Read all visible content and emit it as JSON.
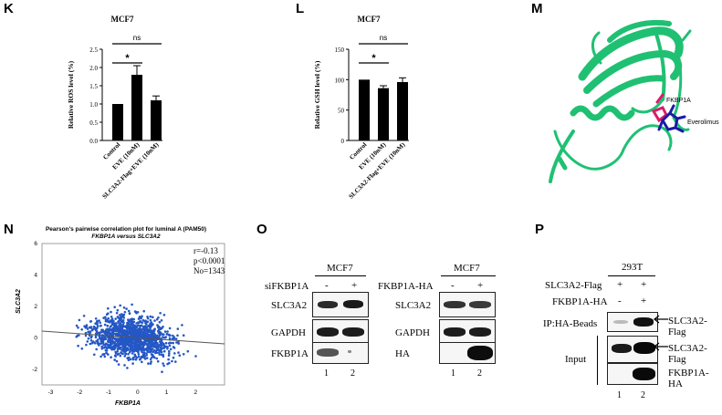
{
  "panels": {
    "K": "K",
    "L": "L",
    "M": "M",
    "N": "N",
    "O": "O",
    "P": "P"
  },
  "chart_data": [
    {
      "type": "bar",
      "panel": "K",
      "title": "MCF7",
      "ylabel": "Relative ROS level (%)",
      "categories": [
        "Control",
        "EVE (10nM)",
        "SLC3A2-Flag+EVE (10nM)"
      ],
      "values": [
        1.0,
        1.8,
        1.1
      ],
      "errors": [
        0.0,
        0.25,
        0.12
      ],
      "ylim": [
        0,
        2.5
      ],
      "yticks": [
        "0.0",
        "0.5",
        "1.0",
        "1.5",
        "2.0",
        "2.5"
      ],
      "significance": [
        {
          "label": "*",
          "from": 0,
          "to": 1
        },
        {
          "label": "ns",
          "from": 0,
          "to": 2
        }
      ]
    },
    {
      "type": "bar",
      "panel": "L",
      "title": "MCF7",
      "ylabel": "Relative GSH level (%)",
      "categories": [
        "Control",
        "EVE (10nM)",
        "SLC3A2-Flag+EVE (10nM)"
      ],
      "values": [
        100,
        86,
        96
      ],
      "errors": [
        0,
        4,
        7
      ],
      "ylim": [
        0,
        150
      ],
      "yticks": [
        "0",
        "50",
        "100",
        "150"
      ],
      "significance": [
        {
          "label": "*",
          "from": 0,
          "to": 1
        },
        {
          "label": "ns",
          "from": 0,
          "to": 2
        }
      ]
    },
    {
      "type": "scatter",
      "panel": "N",
      "title": "Pearson's pairwise correlation plot for luminal A (PAM50)",
      "subtitle": "FKBP1A versus SLC3A2",
      "xlabel": "FKBP1A",
      "ylabel": "SLC3A2",
      "xlim": [
        -3.3,
        3.0
      ],
      "ylim": [
        -3.0,
        6.0
      ],
      "xticks": [
        "-3",
        "-2",
        "-1",
        "0",
        "1",
        "2"
      ],
      "yticks": [
        "-2",
        "0",
        "2",
        "4",
        "6"
      ],
      "stats": [
        "r=-0.13",
        "p<0.0001",
        "No=1343"
      ],
      "n_points": 1343,
      "regression": {
        "slope": -0.13,
        "intercept": 0.0
      },
      "color": "#2457c5"
    }
  ],
  "structure": {
    "labels": [
      "FKBP1A",
      "Everolimus"
    ],
    "ribbon_color": "#20c073",
    "ligand_color": "#1a1aa8",
    "residue_color": "#d81b6a"
  },
  "blot_O_left": {
    "header": "MCF7",
    "condition": "siFKBP1A",
    "lanes_sign": [
      "-",
      "+"
    ],
    "rows": [
      "SLC3A2",
      "GAPDH",
      "FKBP1A"
    ],
    "lane_numbers": [
      "1",
      "2"
    ]
  },
  "blot_O_right": {
    "header": "MCF7",
    "condition": "FKBP1A-HA",
    "lanes_sign": [
      "-",
      "+"
    ],
    "rows": [
      "SLC3A2",
      "GAPDH",
      "HA"
    ],
    "lane_numbers": [
      "1",
      "2"
    ]
  },
  "blot_P": {
    "header": "293T",
    "conditions": [
      {
        "label": "SLC3A2-Flag",
        "signs": [
          "+",
          "+"
        ]
      },
      {
        "label": "FKBP1A-HA",
        "signs": [
          "-",
          "+"
        ]
      }
    ],
    "ip_label": "IP:HA-Beads",
    "input_label": "Input",
    "right_labels": [
      "SLC3A2-Flag",
      "SLC3A2-Flag",
      "FKBP1A-HA"
    ],
    "lane_numbers": [
      "1",
      "2"
    ]
  }
}
